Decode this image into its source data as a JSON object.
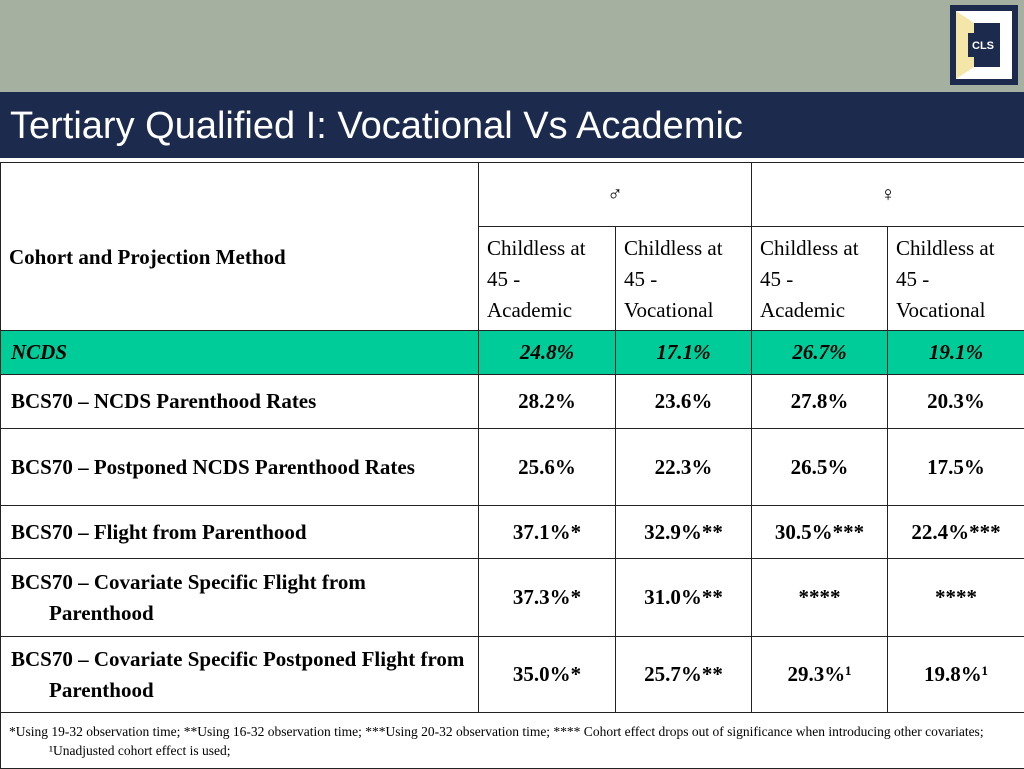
{
  "header": {
    "title": "Tertiary Qualified I: Vocational Vs Academic",
    "logo": "CLS"
  },
  "table": {
    "row_header": "Cohort and Projection Method",
    "groups": [
      "♂",
      "♀"
    ],
    "columns": [
      "Childless at 45 - Academic",
      "Childless at 45 - Vocational",
      "Childless at 45 - Academic",
      "Childless at 45 - Vocational"
    ],
    "rows": [
      [
        "NCDS",
        "24.8%",
        "17.1%",
        "26.7%",
        "19.1%"
      ],
      [
        "BCS70 – NCDS Parenthood Rates",
        "28.2%",
        "23.6%",
        "27.8%",
        "20.3%"
      ],
      [
        "BCS70 – Postponed NCDS Parenthood Rates",
        "25.6%",
        "22.3%",
        "26.5%",
        "17.5%"
      ],
      [
        "BCS70 – Flight from Parenthood",
        "37.1%*",
        "32.9%**",
        "30.5%***",
        "22.4%***"
      ],
      [
        "BCS70 – Covariate Specific Flight from Parenthood",
        "37.3%*",
        "31.0%**",
        "****",
        "****"
      ],
      [
        "BCS70 – Covariate Specific Postponed Flight from Parenthood",
        "35.0%*",
        "25.7%**",
        "29.3%¹",
        "19.8%¹"
      ]
    ],
    "footnote": "*Using 19-32 observation time; **Using 16-32 observation time; ***Using 20-32 observation time; **** Cohort effect drops out of significance when introducing other covariates; ¹Unadjusted cohort effect is used;"
  }
}
